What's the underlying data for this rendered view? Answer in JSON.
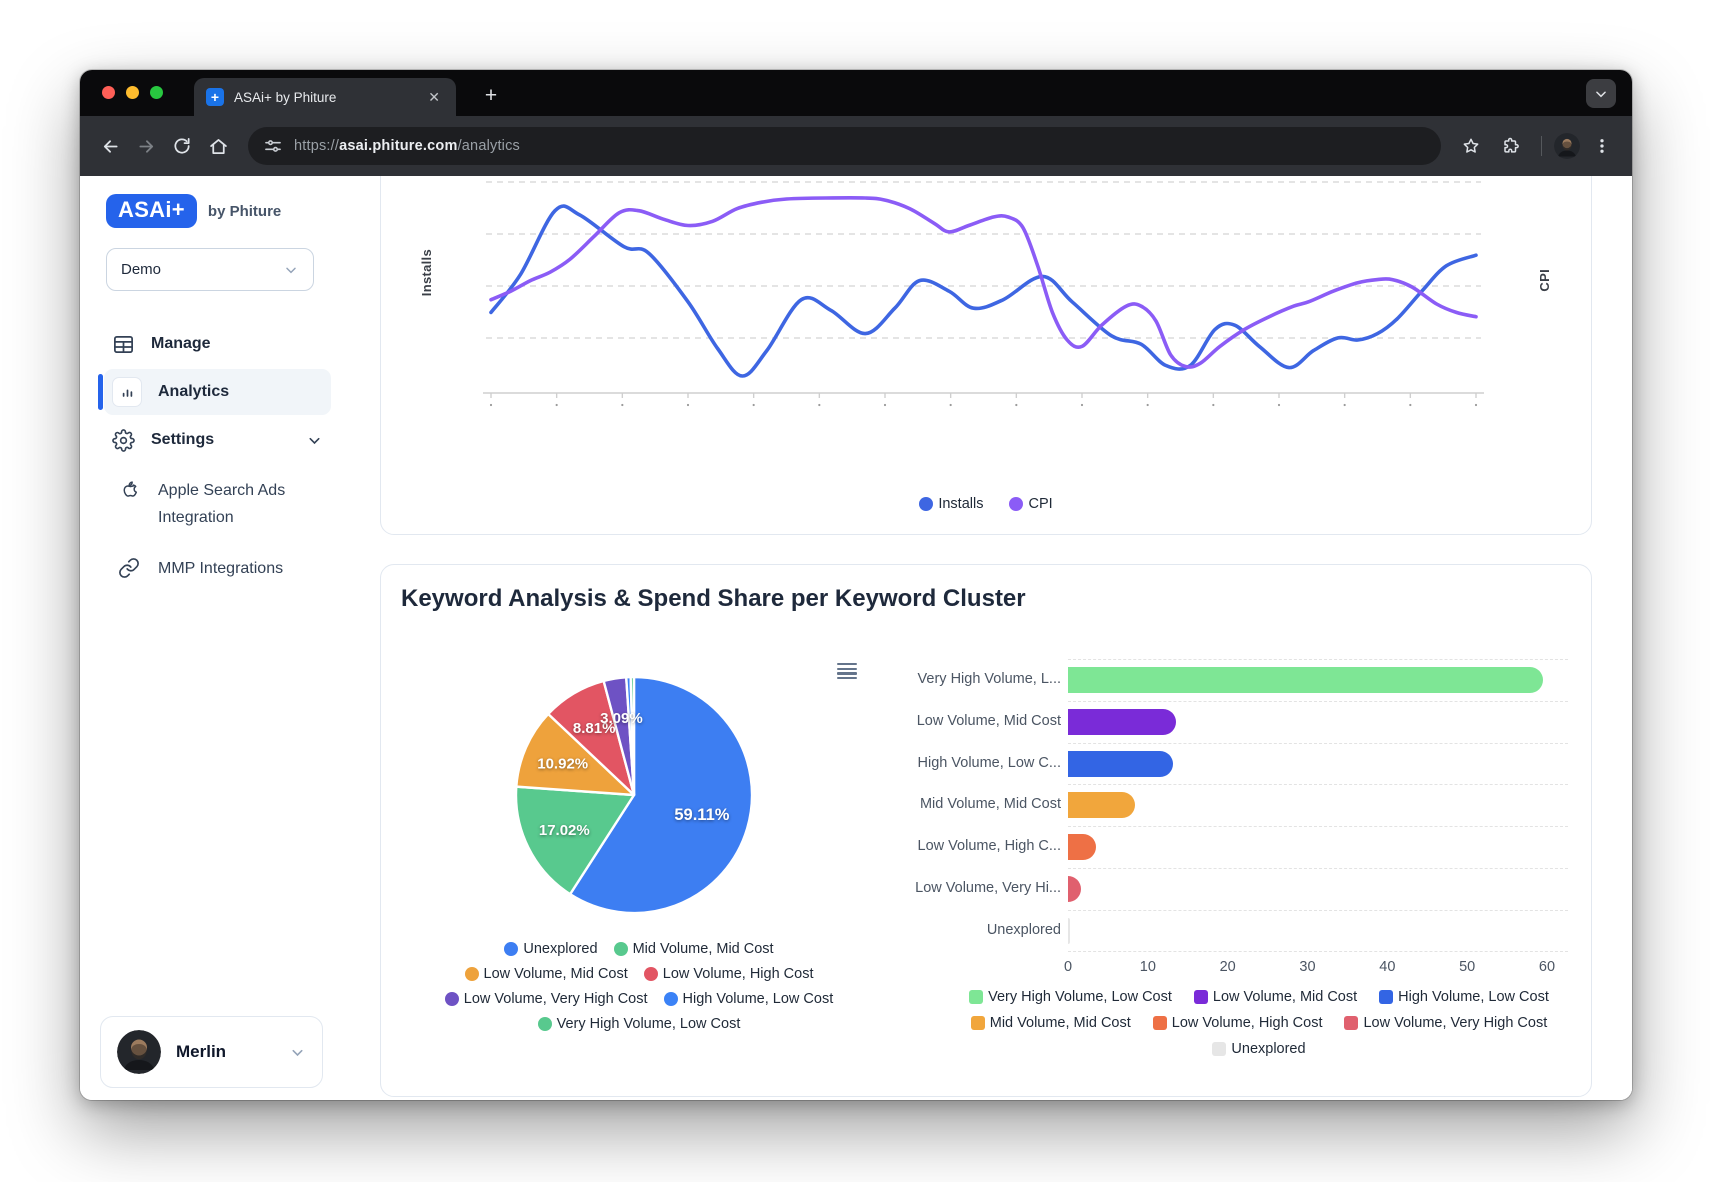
{
  "browser": {
    "tab": {
      "title": "ASAi+ by Phiture",
      "favicon_glyph": "+"
    },
    "url": {
      "scheme": "https://",
      "host": "asai.phiture.com",
      "path": "/analytics"
    }
  },
  "sidebar": {
    "logo": {
      "badge": "ASAi+",
      "suffix": "by Phiture"
    },
    "workspace_select": {
      "value": "Demo"
    },
    "items": [
      {
        "label": "Manage",
        "active": false
      },
      {
        "label": "Analytics",
        "active": true
      },
      {
        "label": "Settings",
        "active": false
      },
      {
        "label": "Apple Search Ads Integration",
        "active": false
      },
      {
        "label": "MMP Integrations",
        "active": false
      }
    ],
    "user": {
      "name": "Merlin"
    }
  },
  "section": {
    "title": "Keyword Analysis & Spend Share per Keyword Cluster"
  },
  "chart_data": [
    {
      "type": "line",
      "name": "installs-cpi-trend",
      "ylabel_left": "Installs",
      "ylabel_right": "CPI",
      "grid": true,
      "legend_position": "bottom",
      "x_range_normalized": [
        0,
        100
      ],
      "series": [
        {
          "name": "Installs",
          "color": "#3e66e2",
          "points": [
            [
              0,
              0.62
            ],
            [
              3,
              0.44
            ],
            [
              6.5,
              0.14
            ],
            [
              9,
              0.16
            ],
            [
              13.5,
              0.31
            ],
            [
              16,
              0.34
            ],
            [
              20,
              0.57
            ],
            [
              23,
              0.79
            ],
            [
              25.5,
              0.92
            ],
            [
              28,
              0.8
            ],
            [
              31.5,
              0.56
            ],
            [
              34.5,
              0.61
            ],
            [
              38,
              0.72
            ],
            [
              41,
              0.6
            ],
            [
              43.5,
              0.47
            ],
            [
              46.5,
              0.52
            ],
            [
              49,
              0.6
            ],
            [
              52,
              0.56
            ],
            [
              56,
              0.45
            ],
            [
              59,
              0.57
            ],
            [
              63,
              0.73
            ],
            [
              66,
              0.77
            ],
            [
              68.5,
              0.87
            ],
            [
              71,
              0.87
            ],
            [
              73.5,
              0.7
            ],
            [
              75.5,
              0.68
            ],
            [
              78,
              0.78
            ],
            [
              81,
              0.88
            ],
            [
              83.5,
              0.8
            ],
            [
              86,
              0.74
            ],
            [
              88,
              0.75
            ],
            [
              90,
              0.72
            ],
            [
              92,
              0.65
            ],
            [
              94.5,
              0.52
            ],
            [
              97,
              0.4
            ],
            [
              100,
              0.35
            ]
          ]
        },
        {
          "name": "CPI",
          "color": "#8b5cf6",
          "points": [
            [
              0,
              0.56
            ],
            [
              2,
              0.52
            ],
            [
              4,
              0.47
            ],
            [
              6,
              0.43
            ],
            [
              8,
              0.37
            ],
            [
              10.5,
              0.26
            ],
            [
              13,
              0.15
            ],
            [
              15,
              0.14
            ],
            [
              17.5,
              0.18
            ],
            [
              20,
              0.21
            ],
            [
              22.5,
              0.19
            ],
            [
              25,
              0.13
            ],
            [
              27.5,
              0.1
            ],
            [
              30,
              0.085
            ],
            [
              34,
              0.08
            ],
            [
              38,
              0.08
            ],
            [
              40,
              0.09
            ],
            [
              42.5,
              0.13
            ],
            [
              45,
              0.2
            ],
            [
              46.5,
              0.24
            ],
            [
              48.5,
              0.21
            ],
            [
              51,
              0.17
            ],
            [
              52.5,
              0.17
            ],
            [
              54,
              0.22
            ],
            [
              55.5,
              0.4
            ],
            [
              57,
              0.62
            ],
            [
              58.5,
              0.75
            ],
            [
              60,
              0.78
            ],
            [
              62,
              0.68
            ],
            [
              64.5,
              0.59
            ],
            [
              66,
              0.59
            ],
            [
              67.5,
              0.66
            ],
            [
              69,
              0.82
            ],
            [
              70.5,
              0.875
            ],
            [
              72,
              0.86
            ],
            [
              74,
              0.78
            ],
            [
              76.5,
              0.7
            ],
            [
              79,
              0.64
            ],
            [
              81.5,
              0.59
            ],
            [
              83,
              0.57
            ],
            [
              85.5,
              0.52
            ],
            [
              88,
              0.48
            ],
            [
              90,
              0.465
            ],
            [
              91.5,
              0.465
            ],
            [
              93.5,
              0.5
            ],
            [
              96,
              0.58
            ],
            [
              98,
              0.62
            ],
            [
              100,
              0.64
            ]
          ]
        }
      ]
    },
    {
      "type": "pie",
      "name": "keyword-share-per-cluster",
      "slices": [
        {
          "label": "Unexplored",
          "value": 59.11,
          "display": "59.11%",
          "color": "#3d7ef2"
        },
        {
          "label": "Mid Volume, Mid Cost",
          "value": 17.02,
          "display": "17.02%",
          "color": "#58c98e"
        },
        {
          "label": "Low Volume, Mid Cost",
          "value": 10.92,
          "display": "10.92%",
          "color": "#eea23c"
        },
        {
          "label": "Low Volume, High Cost",
          "value": 8.81,
          "display": "8.81%",
          "color": "#e25563"
        },
        {
          "label": "Low Volume, Very High Cost",
          "value": 3.09,
          "display": "3.09%",
          "color": "#6e52c4"
        },
        {
          "label": "High Volume, Low Cost",
          "value": 0.6,
          "display": "",
          "color": "#3b82f6"
        },
        {
          "label": "Very High Volume, Low Cost",
          "value": 0.45,
          "display": "",
          "color": "#58c98e"
        }
      ]
    },
    {
      "type": "bar",
      "name": "spend-share-per-cluster",
      "orientation": "horizontal",
      "categories": [
        "Very High Volume, L...",
        "Low Volume, Mid Cost",
        "High Volume, Low C...",
        "Mid Volume, Mid Cost",
        "Low Volume, High C...",
        "Low Volume, Very Hi...",
        "Unexplored"
      ],
      "values": [
        59.5,
        13.5,
        13.2,
        8.4,
        3.5,
        1.6,
        0.3
      ],
      "colors": [
        "#7ee695",
        "#7a2bd8",
        "#3365e4",
        "#f1a63c",
        "#ee7045",
        "#e0606e",
        "#e6e6e6"
      ],
      "xlim": [
        0,
        60
      ],
      "x_ticks": [
        0,
        10,
        20,
        30,
        40,
        50,
        60
      ],
      "legend": [
        {
          "label": "Very High Volume, Low Cost",
          "color": "#7ee695"
        },
        {
          "label": "Low Volume, Mid Cost",
          "color": "#7a2bd8"
        },
        {
          "label": "High Volume, Low Cost",
          "color": "#3365e4"
        },
        {
          "label": "Mid Volume, Mid Cost",
          "color": "#f1a63c"
        },
        {
          "label": "Low Volume, High Cost",
          "color": "#ee7045"
        },
        {
          "label": "Low Volume, Very High Cost",
          "color": "#e0606e"
        },
        {
          "label": "Unexplored",
          "color": "#e6e6e6"
        }
      ]
    }
  ],
  "colors": {
    "accent_blue": "#2563eb",
    "traffic": [
      "#ff5f57",
      "#febc2e",
      "#28c840"
    ]
  }
}
